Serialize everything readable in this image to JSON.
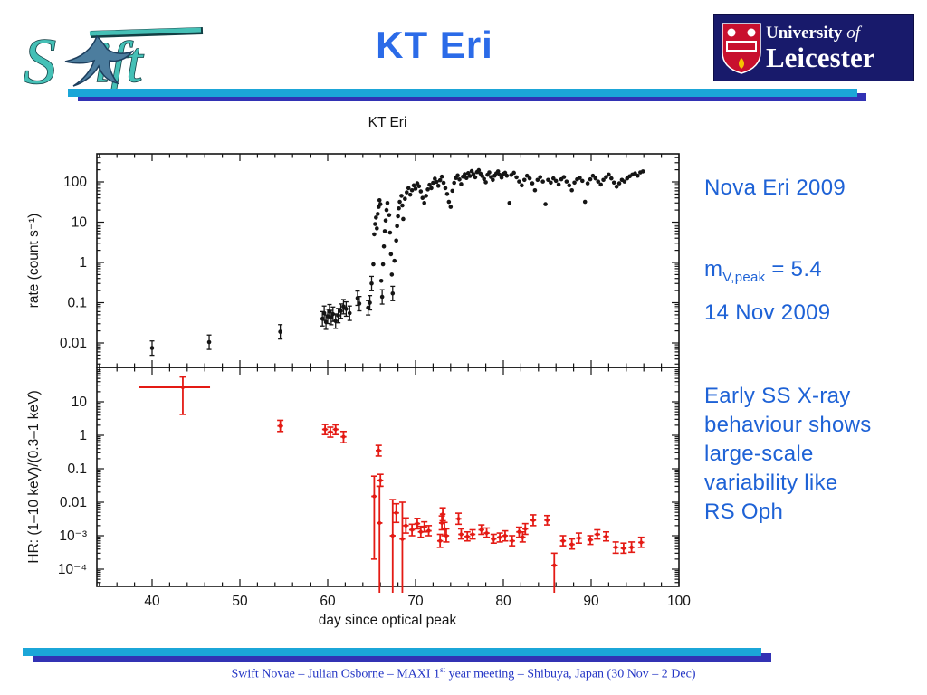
{
  "slide": {
    "title": "KT Eri",
    "swift_logo_text_s": "S",
    "swift_logo_text_ift": "ift",
    "leicester": {
      "line1_a": "University ",
      "line1_b": "of",
      "line2": "Leicester"
    }
  },
  "notes": {
    "nova": "Nova Eri 2009",
    "mv_base": "m",
    "mv_sub": "V,peak",
    "mv_rest": " = 5.4",
    "date": "14 Nov 2009",
    "early_lines": [
      "Early SS X-ray",
      "behaviour shows",
      "large-scale",
      "variability  like",
      "RS Oph"
    ]
  },
  "footer": {
    "pre": "Swift Novae – Julian Osborne – MAXI 1",
    "sup": "st",
    "post": " year meeting – Shibuya, Japan (30 Nov – 2 Dec)"
  },
  "colors": {
    "title_blue": "#2b6be8",
    "note_blue": "#1e62d6",
    "footer_blue": "#2335c5",
    "accent_cyan": "#1ba6d8",
    "accent_navy": "#3232b4",
    "data_red": "#e41a14",
    "data_black": "#151515",
    "leicester_navy": "#181a6b",
    "leicester_red": "#c8102e",
    "swift_teal": "#45c0b6"
  },
  "chart_data": [
    {
      "type": "scatter",
      "title": "KT Eri",
      "xlabel": "day since optical peak",
      "ylabel": "rate (count s⁻¹)",
      "yscale": "log",
      "xlim": [
        33.7,
        100
      ],
      "ylim": [
        0.0025,
        500
      ],
      "xticks": [
        40,
        50,
        60,
        70,
        80,
        90,
        100
      ],
      "ytick_values": [
        100,
        10,
        1,
        0.1,
        0.01
      ],
      "ytick_labels": [
        "100",
        "10",
        "1",
        "0.1",
        "0.01"
      ],
      "grid": false,
      "legend": "none",
      "marker_color": "#151515",
      "points": [
        [
          40,
          0.0075
        ],
        [
          46.5,
          0.0105
        ],
        [
          54.6,
          0.019
        ],
        [
          59.4,
          0.04
        ],
        [
          59.6,
          0.055
        ],
        [
          59.8,
          0.033
        ],
        [
          60.0,
          0.046
        ],
        [
          60.2,
          0.06
        ],
        [
          60.4,
          0.043
        ],
        [
          60.6,
          0.052
        ],
        [
          60.9,
          0.035
        ],
        [
          61.2,
          0.048
        ],
        [
          61.5,
          0.062
        ],
        [
          61.8,
          0.08
        ],
        [
          62.1,
          0.07
        ],
        [
          62.5,
          0.055
        ],
        [
          63.4,
          0.13
        ],
        [
          63.6,
          0.095
        ],
        [
          64.6,
          0.075
        ],
        [
          64.8,
          0.1
        ],
        [
          65.0,
          0.3
        ],
        [
          65.2,
          0.9
        ],
        [
          65.3,
          5
        ],
        [
          65.4,
          9
        ],
        [
          65.5,
          13
        ],
        [
          65.6,
          7
        ],
        [
          65.7,
          16
        ],
        [
          65.8,
          24
        ],
        [
          65.9,
          35
        ],
        [
          66.0,
          28
        ],
        [
          66.1,
          0.35
        ],
        [
          66.2,
          0.14
        ],
        [
          66.3,
          0.9
        ],
        [
          66.4,
          2.5
        ],
        [
          66.5,
          6
        ],
        [
          66.6,
          11
        ],
        [
          66.7,
          20
        ],
        [
          66.8,
          30
        ],
        [
          67.0,
          15
        ],
        [
          67.1,
          5.5
        ],
        [
          67.2,
          1.6
        ],
        [
          67.3,
          0.5
        ],
        [
          67.4,
          0.17
        ],
        [
          67.6,
          1.1
        ],
        [
          67.8,
          3.5
        ],
        [
          67.9,
          8
        ],
        [
          68.0,
          14
        ],
        [
          68.1,
          22
        ],
        [
          68.2,
          32
        ],
        [
          68.4,
          45
        ],
        [
          68.5,
          26
        ],
        [
          68.6,
          12
        ],
        [
          68.8,
          38
        ],
        [
          69.0,
          55
        ],
        [
          69.2,
          70
        ],
        [
          69.4,
          48
        ],
        [
          69.6,
          62
        ],
        [
          69.8,
          82
        ],
        [
          70.0,
          68
        ],
        [
          70.2,
          92
        ],
        [
          70.4,
          78
        ],
        [
          70.6,
          58
        ],
        [
          70.8,
          40
        ],
        [
          71.0,
          30
        ],
        [
          71.2,
          45
        ],
        [
          71.4,
          65
        ],
        [
          71.6,
          85
        ],
        [
          71.8,
          70
        ],
        [
          72.0,
          95
        ],
        [
          72.2,
          120
        ],
        [
          72.4,
          100
        ],
        [
          72.6,
          80
        ],
        [
          72.8,
          110
        ],
        [
          73.0,
          135
        ],
        [
          73.2,
          95
        ],
        [
          73.4,
          70
        ],
        [
          73.6,
          50
        ],
        [
          73.8,
          32
        ],
        [
          74.0,
          24
        ],
        [
          74.2,
          60
        ],
        [
          74.4,
          95
        ],
        [
          74.6,
          125
        ],
        [
          74.8,
          145
        ],
        [
          75.0,
          115
        ],
        [
          75.2,
          88
        ],
        [
          75.4,
          135
        ],
        [
          75.6,
          155
        ],
        [
          75.8,
          125
        ],
        [
          76.0,
          165
        ],
        [
          76.2,
          140
        ],
        [
          76.4,
          185
        ],
        [
          76.6,
          155
        ],
        [
          76.8,
          130
        ],
        [
          77.0,
          175
        ],
        [
          77.2,
          195
        ],
        [
          77.4,
          160
        ],
        [
          77.6,
          140
        ],
        [
          77.8,
          118
        ],
        [
          78.0,
          98
        ],
        [
          78.2,
          150
        ],
        [
          78.4,
          172
        ],
        [
          78.6,
          132
        ],
        [
          78.8,
          112
        ],
        [
          79.0,
          142
        ],
        [
          79.2,
          162
        ],
        [
          79.4,
          182
        ],
        [
          79.6,
          150
        ],
        [
          79.8,
          128
        ],
        [
          80.0,
          158
        ],
        [
          80.2,
          168
        ],
        [
          80.4,
          142
        ],
        [
          80.7,
          30
        ],
        [
          80.9,
          148
        ],
        [
          81.2,
          168
        ],
        [
          81.5,
          130
        ],
        [
          81.8,
          102
        ],
        [
          82.1,
          82
        ],
        [
          82.4,
          112
        ],
        [
          82.7,
          142
        ],
        [
          83.0,
          122
        ],
        [
          83.3,
          92
        ],
        [
          83.6,
          62
        ],
        [
          83.9,
          112
        ],
        [
          84.2,
          132
        ],
        [
          84.5,
          102
        ],
        [
          84.8,
          28
        ],
        [
          85.1,
          112
        ],
        [
          85.4,
          96
        ],
        [
          85.7,
          122
        ],
        [
          86.0,
          106
        ],
        [
          86.3,
          86
        ],
        [
          86.6,
          116
        ],
        [
          86.9,
          132
        ],
        [
          87.2,
          102
        ],
        [
          87.5,
          82
        ],
        [
          87.8,
          62
        ],
        [
          88.1,
          96
        ],
        [
          88.4,
          116
        ],
        [
          88.7,
          126
        ],
        [
          89.0,
          106
        ],
        [
          89.3,
          32
        ],
        [
          89.6,
          92
        ],
        [
          89.9,
          116
        ],
        [
          90.2,
          142
        ],
        [
          90.5,
          122
        ],
        [
          90.8,
          102
        ],
        [
          91.1,
          86
        ],
        [
          91.4,
          112
        ],
        [
          91.7,
          132
        ],
        [
          92.0,
          152
        ],
        [
          92.3,
          122
        ],
        [
          92.6,
          96
        ],
        [
          92.9,
          76
        ],
        [
          93.2,
          92
        ],
        [
          93.5,
          112
        ],
        [
          93.8,
          102
        ],
        [
          94.1,
          122
        ],
        [
          94.4,
          138
        ],
        [
          94.7,
          152
        ],
        [
          95.0,
          162
        ],
        [
          95.3,
          142
        ],
        [
          95.6,
          172
        ],
        [
          95.9,
          182
        ]
      ]
    },
    {
      "type": "scatter",
      "title": "",
      "xlabel": "day since optical peak",
      "ylabel": "HR: (1–10 keV)/(0.3–1 keV)",
      "yscale": "log",
      "xlim": [
        33.7,
        100
      ],
      "ylim": [
        3.1e-05,
        107
      ],
      "xticks": [
        40,
        50,
        60,
        70,
        80,
        90,
        100
      ],
      "ytick_values": [
        10,
        1,
        0.1,
        0.01,
        0.001,
        0.0001
      ],
      "ytick_labels": [
        "10",
        "1",
        "0.1",
        "0.01",
        "10⁻³",
        "10⁻⁴"
      ],
      "grid": false,
      "legend": "none",
      "marker_color": "#e41a14",
      "points_format": "[day, hr, err_lo, err_hi, (xerr_lo), (xerr_hi)]",
      "points": [
        [
          43.5,
          27,
          4.2,
          55,
          38.5,
          46.6
        ],
        [
          54.6,
          1.9,
          1.3,
          2.8
        ],
        [
          59.7,
          1.5,
          1.05,
          2.1
        ],
        [
          60.3,
          1.25,
          0.88,
          1.75
        ],
        [
          60.9,
          1.5,
          1.05,
          2.05
        ],
        [
          61.8,
          0.9,
          0.6,
          1.3
        ],
        [
          65.3,
          0.015,
          0.0002,
          0.06
        ],
        [
          65.8,
          0.35,
          0.24,
          0.5
        ],
        [
          65.9,
          0.0024,
          1.5e-05,
          0.03
        ],
        [
          66.0,
          0.045,
          0.03,
          0.068
        ],
        [
          67.4,
          0.001,
          1.5e-05,
          0.012
        ],
        [
          67.8,
          0.0048,
          0.0025,
          0.009
        ],
        [
          68.5,
          0.0008,
          1.5e-05,
          0.01
        ],
        [
          68.9,
          0.002,
          0.0012,
          0.0034
        ],
        [
          69.6,
          0.0015,
          0.001,
          0.0022
        ],
        [
          70.2,
          0.0023,
          0.0016,
          0.0033
        ],
        [
          70.6,
          0.0013,
          0.0009,
          0.0019
        ],
        [
          71.0,
          0.0018,
          0.0013,
          0.0026
        ],
        [
          71.5,
          0.0014,
          0.001,
          0.002
        ],
        [
          72.8,
          0.0007,
          0.00045,
          0.0011
        ],
        [
          73.0,
          0.0024,
          0.0015,
          0.0039
        ],
        [
          73.1,
          0.0044,
          0.0028,
          0.0068
        ],
        [
          73.3,
          0.0016,
          0.001,
          0.0025
        ],
        [
          73.5,
          0.001,
          0.00065,
          0.0016
        ],
        [
          74.9,
          0.0032,
          0.0022,
          0.0047
        ],
        [
          75.2,
          0.0011,
          0.0008,
          0.0016
        ],
        [
          75.9,
          0.00095,
          0.0007,
          0.0013
        ],
        [
          76.5,
          0.0011,
          0.0008,
          0.0015
        ],
        [
          77.5,
          0.0015,
          0.0011,
          0.0021
        ],
        [
          78.1,
          0.0012,
          0.0009,
          0.0017
        ],
        [
          78.9,
          0.0008,
          0.0006,
          0.0011
        ],
        [
          79.6,
          0.0009,
          0.00065,
          0.0012
        ],
        [
          80.2,
          0.001,
          0.0007,
          0.0014
        ],
        [
          81.0,
          0.0007,
          0.0005,
          0.001
        ],
        [
          81.8,
          0.0013,
          0.0009,
          0.0018
        ],
        [
          82.2,
          0.0009,
          0.00065,
          0.0013
        ],
        [
          82.5,
          0.0016,
          0.0011,
          0.0023
        ],
        [
          83.4,
          0.0029,
          0.002,
          0.0042
        ],
        [
          85.0,
          0.0029,
          0.0021,
          0.004
        ],
        [
          85.8,
          0.00013,
          1.5e-05,
          0.0003
        ],
        [
          86.8,
          0.0007,
          0.0005,
          0.001
        ],
        [
          87.8,
          0.00055,
          0.0004,
          0.0008
        ],
        [
          88.6,
          0.00085,
          0.0006,
          0.0012
        ],
        [
          89.9,
          0.00075,
          0.00055,
          0.001
        ],
        [
          90.7,
          0.0011,
          0.0008,
          0.0015
        ],
        [
          91.7,
          0.00095,
          0.0007,
          0.0013
        ],
        [
          92.8,
          0.00045,
          0.0003,
          0.00065
        ],
        [
          93.7,
          0.00042,
          0.0003,
          0.0006
        ],
        [
          94.6,
          0.00045,
          0.00032,
          0.00065
        ],
        [
          95.7,
          0.00063,
          0.00045,
          0.0009
        ]
      ]
    }
  ]
}
